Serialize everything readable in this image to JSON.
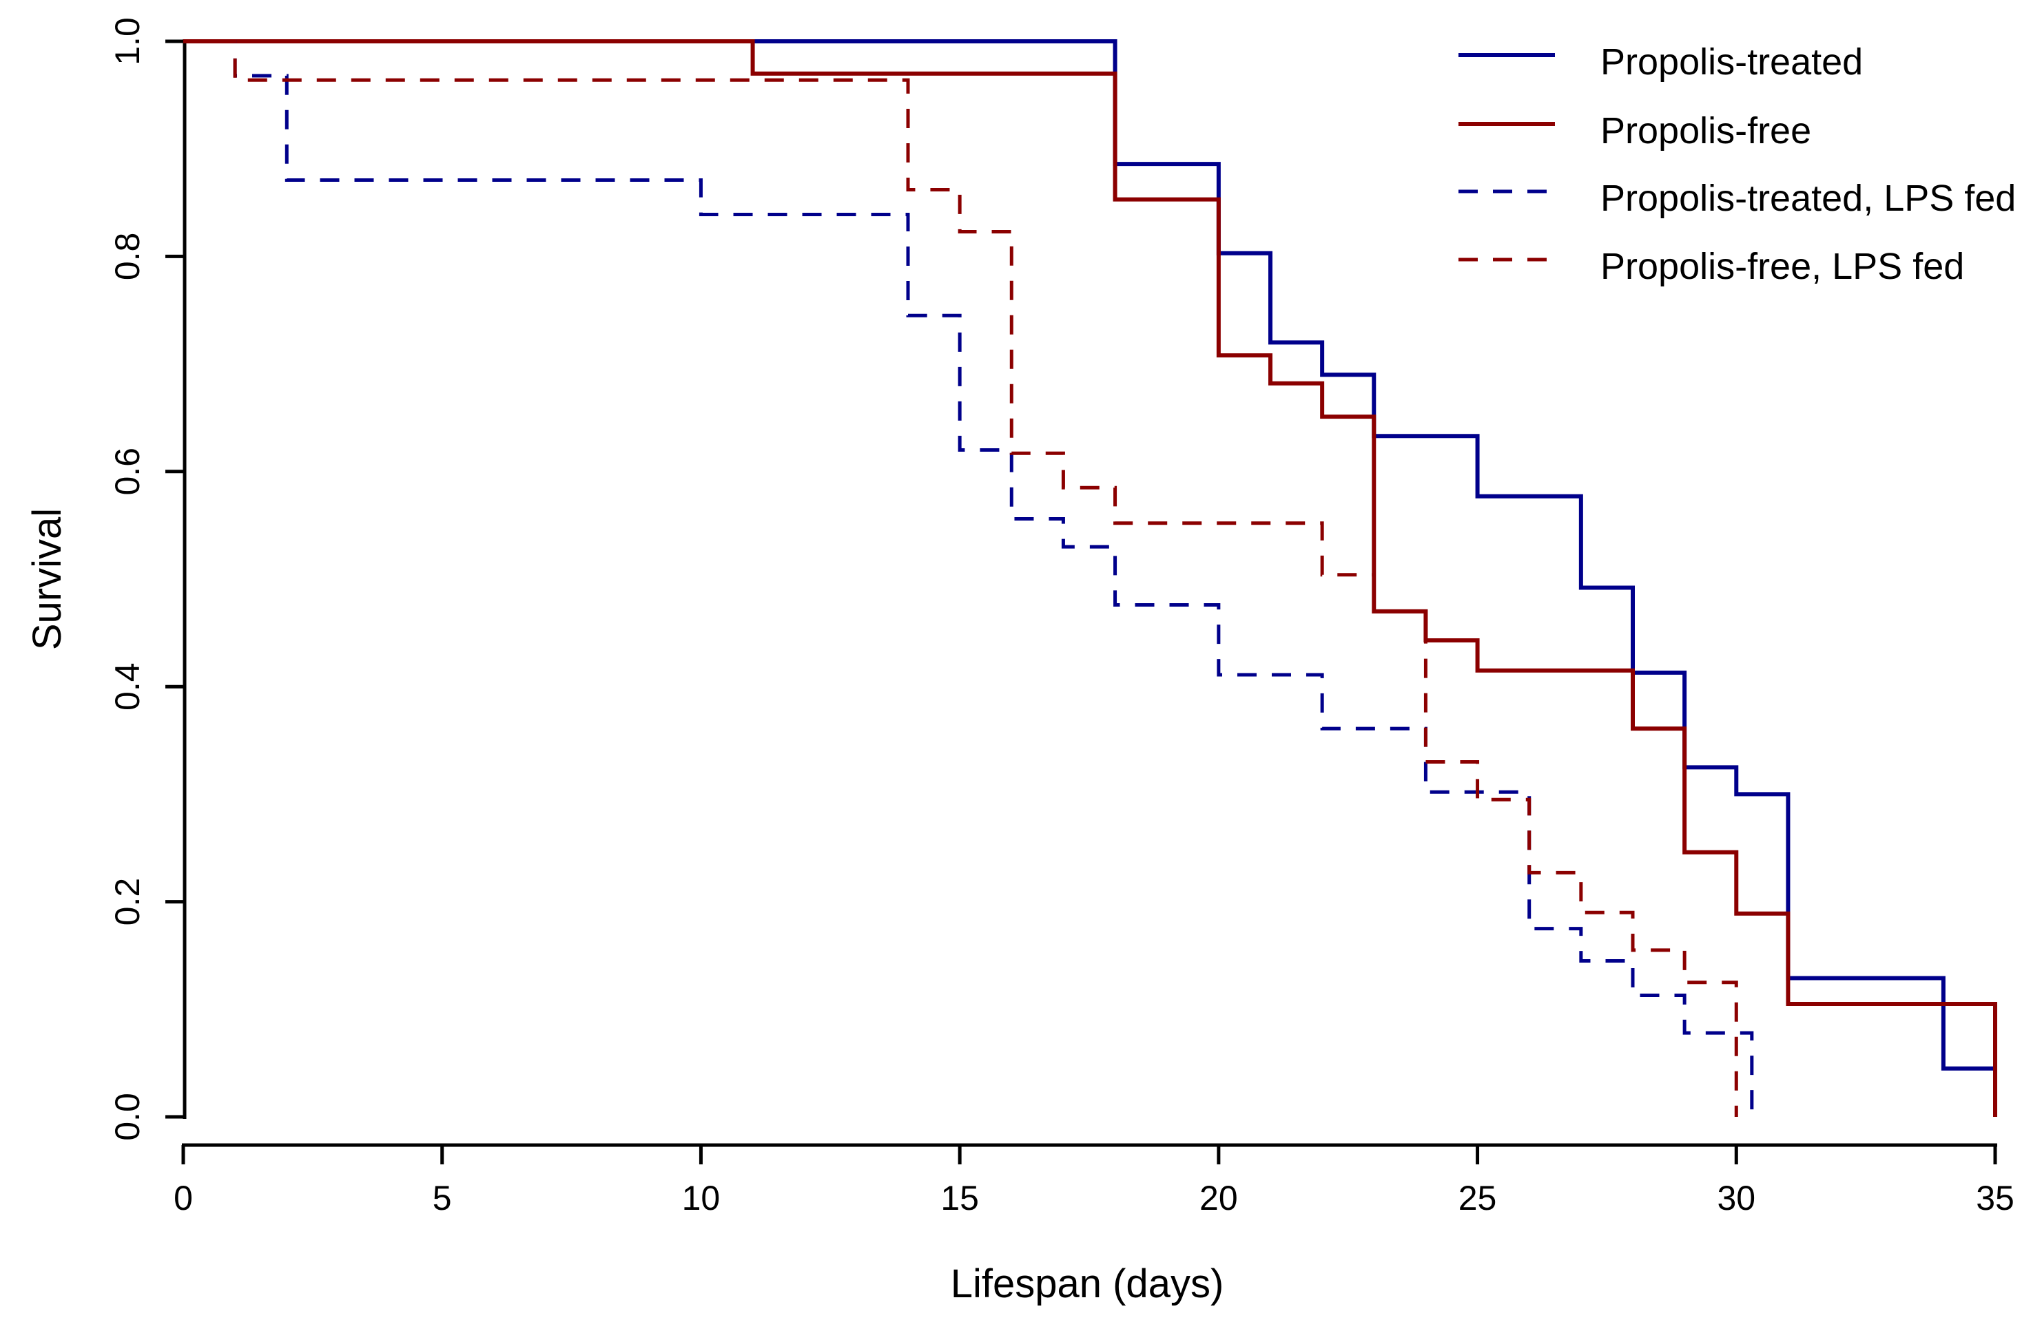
{
  "chart_data": {
    "type": "line",
    "subtype": "kaplan-meier-step",
    "title": "",
    "xlabel": "Lifespan (days)",
    "ylabel": "Survival",
    "xlim": [
      0,
      35
    ],
    "ylim": [
      0.0,
      1.0
    ],
    "x_ticks": [
      "0",
      "5",
      "10",
      "15",
      "20",
      "25",
      "30",
      "35"
    ],
    "y_ticks": [
      "0.0",
      "0.2",
      "0.4",
      "0.6",
      "0.8",
      "1.0"
    ],
    "grid": false,
    "legend_position": "top-right",
    "background_color": "#ffffff",
    "axis_color": "#000000",
    "series": [
      {
        "name": "Propolis-treated",
        "color": "#00008B",
        "style": "solid",
        "points": [
          [
            0,
            1.0
          ],
          [
            18,
            0.886
          ],
          [
            20,
            0.803
          ],
          [
            21,
            0.72
          ],
          [
            22,
            0.69
          ],
          [
            23,
            0.633
          ],
          [
            25,
            0.577
          ],
          [
            27,
            0.492
          ],
          [
            28,
            0.413
          ],
          [
            29,
            0.325
          ],
          [
            30,
            0.3
          ],
          [
            31,
            0.129
          ],
          [
            34,
            0.045
          ],
          [
            35,
            0.045
          ]
        ]
      },
      {
        "name": "Propolis-free",
        "color": "#8B0000",
        "style": "solid",
        "points": [
          [
            0,
            1.0
          ],
          [
            11,
            0.97
          ],
          [
            18,
            0.853
          ],
          [
            20,
            0.708
          ],
          [
            21,
            0.682
          ],
          [
            22,
            0.651
          ],
          [
            23,
            0.47
          ],
          [
            24,
            0.443
          ],
          [
            25,
            0.415
          ],
          [
            28,
            0.361
          ],
          [
            29,
            0.246
          ],
          [
            30,
            0.189
          ],
          [
            31,
            0.105
          ],
          [
            35,
            0.0
          ]
        ]
      },
      {
        "name": "Propolis-treated, LPS fed",
        "color": "#00008B",
        "style": "dashed",
        "points": [
          [
            0,
            1.0
          ],
          [
            1,
            0.968
          ],
          [
            2,
            0.871
          ],
          [
            10,
            0.839
          ],
          [
            14,
            0.745
          ],
          [
            15,
            0.62
          ],
          [
            16,
            0.556
          ],
          [
            17,
            0.53
          ],
          [
            18,
            0.476
          ],
          [
            20,
            0.411
          ],
          [
            22,
            0.361
          ],
          [
            24,
            0.302
          ],
          [
            26,
            0.175
          ],
          [
            27,
            0.145
          ],
          [
            28,
            0.113
          ],
          [
            29,
            0.078
          ],
          [
            30.3,
            0.0
          ]
        ]
      },
      {
        "name": "Propolis-free, LPS fed",
        "color": "#8B0000",
        "style": "dashed",
        "points": [
          [
            0,
            1.0
          ],
          [
            1,
            0.964
          ],
          [
            14,
            0.862
          ],
          [
            15,
            0.823
          ],
          [
            16,
            0.617
          ],
          [
            17,
            0.585
          ],
          [
            18,
            0.552
          ],
          [
            22,
            0.504
          ],
          [
            23,
            0.47
          ],
          [
            24,
            0.33
          ],
          [
            25,
            0.295
          ],
          [
            26,
            0.227
          ],
          [
            27,
            0.19
          ],
          [
            28,
            0.155
          ],
          [
            29,
            0.125
          ],
          [
            30,
            0.0
          ]
        ]
      }
    ]
  }
}
